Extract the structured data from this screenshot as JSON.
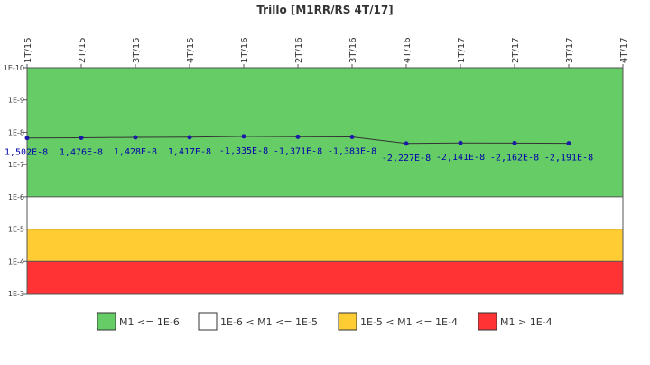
{
  "chart_data": {
    "type": "line",
    "title": "Trillo [M1RR/RS 4T/17]",
    "categories": [
      "1T/15",
      "2T/15",
      "3T/15",
      "4T/15",
      "1T/16",
      "2T/16",
      "3T/16",
      "4T/16",
      "1T/17",
      "2T/17",
      "3T/17",
      "4T/17"
    ],
    "y_axis": {
      "scale": "log",
      "inverted": true,
      "range": [
        1e-10,
        0.001
      ],
      "tick_labels": [
        "1E-10",
        "1E-9",
        "1E-8",
        "1E-7",
        "1E-6",
        "1E-5",
        "1E-4",
        "1E-3"
      ]
    },
    "series": [
      {
        "values": [
          1.502e-08,
          1.476e-08,
          1.428e-08,
          1.417e-08,
          -1.335e-08,
          -1.371e-08,
          -1.383e-08,
          -2.227e-08,
          -2.141e-08,
          -2.162e-08,
          -2.191e-08,
          null
        ],
        "labels": [
          "1,502E-8",
          "1,476E-8",
          "1,428E-8",
          "1,417E-8",
          "-1,335E-8",
          "-1,371E-8",
          "-1,383E-8",
          "-2,227E-8",
          "-2,141E-8",
          "-2,162E-8",
          "-2,191E-8",
          ""
        ],
        "color": "#333333",
        "marker_color": "#1a1aa6",
        "label_color": "#0000aa"
      }
    ],
    "bands": [
      {
        "from": 1e-10,
        "to": 1e-06,
        "color": "#66cc66",
        "legend": "M1 <= 1E-6"
      },
      {
        "from": 1e-06,
        "to": 1e-05,
        "color": "#ffffff",
        "legend": "1E-6 < M1 <= 1E-5"
      },
      {
        "from": 1e-05,
        "to": 0.0001,
        "color": "#ffcc33",
        "legend": "1E-5 < M1 <= 1E-4"
      },
      {
        "from": 0.0001,
        "to": 0.001,
        "color": "#ff3333",
        "legend": "M1 > 1E-4"
      }
    ],
    "legend_position": "bottom",
    "grid": false
  }
}
